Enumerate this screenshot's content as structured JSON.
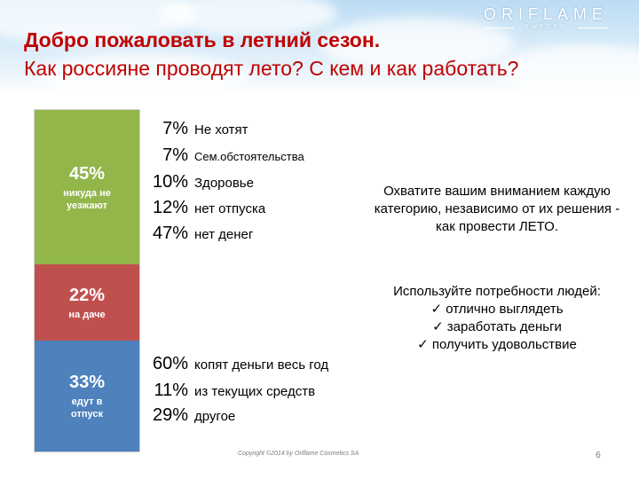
{
  "brand": {
    "name": "ORIFLAME",
    "sub": "SWEDEN"
  },
  "title": {
    "line1": "Добро пожаловать в летний сезон.",
    "line2": "Как россияне проводят лето? С кем и как работать?"
  },
  "summer_breakdown": [
    {
      "percent": "45%",
      "label": "никуда не уезжают",
      "value": 45,
      "color": "#92b64a"
    },
    {
      "percent": "22%",
      "label": "на даче",
      "value": 22,
      "color": "#c0504d"
    },
    {
      "percent": "33%",
      "label": "едут в отпуск",
      "value": 33,
      "color": "#4f81bd"
    }
  ],
  "stay_home_reasons": [
    {
      "percent": "7%",
      "text": "Не хотят"
    },
    {
      "percent": "7%",
      "text": "Сем.обстоятельства"
    },
    {
      "percent": "10%",
      "text": "Здоровье"
    },
    {
      "percent": "12%",
      "text": "нет отпуска"
    },
    {
      "percent": "47%",
      "text": "нет денег"
    }
  ],
  "vacation_funding": [
    {
      "percent": "60%",
      "text": "копят деньги весь год"
    },
    {
      "percent": "11%",
      "text": "из текущих средств"
    },
    {
      "percent": "29%",
      "text": "другое"
    }
  ],
  "note": "Охватите вашим вниманием каждую категорию, независимо от их решения - как провести ЛЕТО.",
  "needs": {
    "heading": "Используйте потребности людей:",
    "items": [
      "✓ отлично выглядеть",
      "✓ заработать деньги",
      "✓ получить удовольствие"
    ]
  },
  "footer": {
    "copyright": "Copyright ©2014 by Oriflame Cosmetics SA",
    "page_number": "6"
  }
}
